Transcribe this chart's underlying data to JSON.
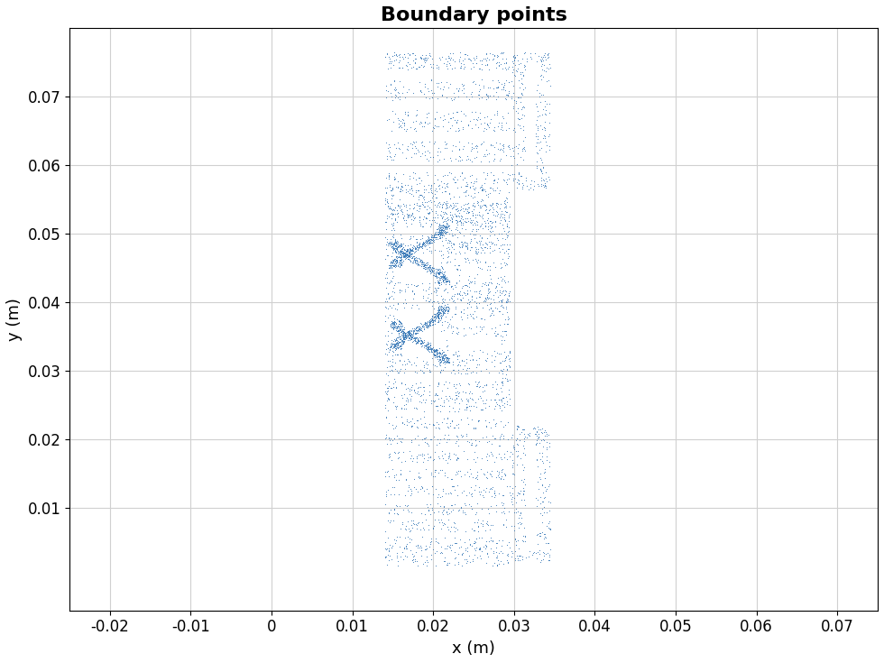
{
  "title": "Boundary points",
  "xlabel": "x (m)",
  "ylabel": "y (m)",
  "xlim": [
    -0.025,
    0.075
  ],
  "ylim": [
    -0.005,
    0.08
  ],
  "xticks": [
    -0.02,
    -0.01,
    0,
    0.01,
    0.02,
    0.03,
    0.04,
    0.05,
    0.06,
    0.07
  ],
  "yticks": [
    0.01,
    0.02,
    0.03,
    0.04,
    0.05,
    0.06,
    0.07
  ],
  "marker_color": "#3375b5",
  "marker_size": 1.5,
  "title_fontsize": 16,
  "title_fontweight": "bold",
  "label_fontsize": 13,
  "tick_fontsize": 12,
  "figsize": [
    9.8,
    7.35
  ],
  "dpi": 100
}
